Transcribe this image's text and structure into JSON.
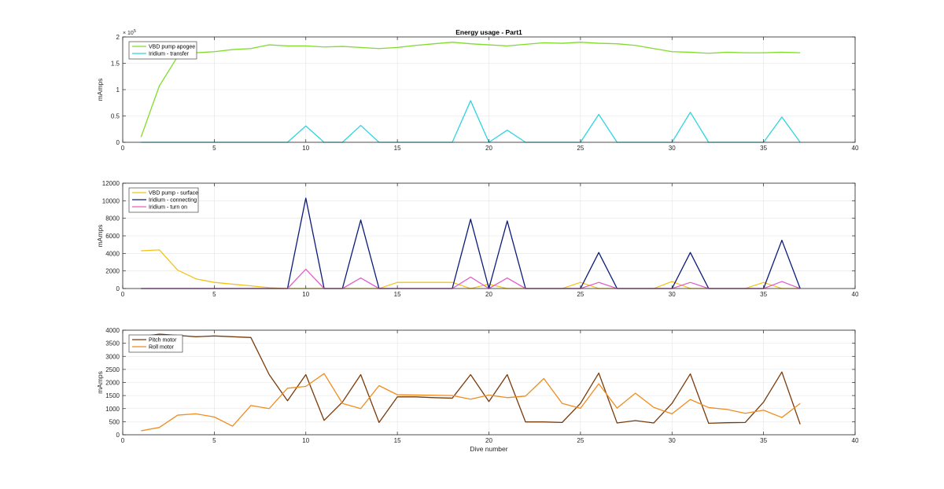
{
  "chart_data": [
    {
      "type": "line",
      "title": "Energy usage - Part1",
      "xlabel": "",
      "ylabel": "mAmps",
      "xlim": [
        0,
        40
      ],
      "ylim": [
        0,
        200000
      ],
      "xticks": [
        0,
        5,
        10,
        15,
        20,
        25,
        30,
        35,
        40
      ],
      "yticks": [
        0,
        50000,
        100000,
        150000,
        200000
      ],
      "ytick_labels": [
        "0",
        "0.5",
        "1",
        "1.5",
        "2"
      ],
      "y_exponent_label": "× 10",
      "y_exponent_power": "5",
      "grid": true,
      "legend_position": "top-left",
      "series": [
        {
          "name": "VBD pump apogee",
          "color": "#7fdc2a",
          "x": [
            1,
            2,
            3,
            4,
            5,
            6,
            7,
            8,
            9,
            10,
            11,
            12,
            13,
            14,
            15,
            16,
            17,
            18,
            19,
            20,
            21,
            22,
            23,
            24,
            25,
            26,
            27,
            28,
            29,
            30,
            31,
            32,
            33,
            34,
            35,
            36,
            37
          ],
          "y": [
            10000,
            107000,
            163000,
            170000,
            172000,
            176000,
            178000,
            185000,
            183000,
            183000,
            181000,
            182000,
            180000,
            178000,
            180000,
            184000,
            187000,
            190000,
            187000,
            185000,
            183000,
            186000,
            189000,
            188000,
            190000,
            188000,
            187000,
            184000,
            178000,
            172000,
            171000,
            169000,
            171000,
            170000,
            170000,
            171000,
            170000
          ]
        },
        {
          "name": "Iridium - transfer",
          "color": "#2fd4e0",
          "x": [
            1,
            2,
            3,
            4,
            5,
            6,
            7,
            8,
            9,
            10,
            11,
            12,
            13,
            14,
            15,
            16,
            17,
            18,
            19,
            20,
            21,
            22,
            23,
            24,
            25,
            26,
            27,
            28,
            29,
            30,
            31,
            32,
            33,
            34,
            35,
            36,
            37
          ],
          "y": [
            0,
            0,
            0,
            0,
            0,
            0,
            0,
            0,
            0,
            31000,
            0,
            0,
            32000,
            0,
            0,
            0,
            0,
            0,
            79000,
            0,
            23000,
            0,
            0,
            0,
            0,
            53000,
            0,
            0,
            0,
            0,
            57000,
            0,
            0,
            0,
            0,
            48000,
            0
          ]
        }
      ]
    },
    {
      "type": "line",
      "title": "",
      "xlabel": "",
      "ylabel": "mAmps",
      "xlim": [
        0,
        40
      ],
      "ylim": [
        0,
        12000
      ],
      "xticks": [
        0,
        5,
        10,
        15,
        20,
        25,
        30,
        35,
        40
      ],
      "yticks": [
        0,
        2000,
        4000,
        6000,
        8000,
        10000,
        12000
      ],
      "ytick_labels": [
        "0",
        "2000",
        "4000",
        "6000",
        "8000",
        "10000",
        "12000"
      ],
      "grid": true,
      "legend_position": "top-left",
      "series": [
        {
          "name": "VBD pump - surface",
          "color": "#f0c419",
          "x": [
            1,
            2,
            3,
            4,
            5,
            6,
            7,
            8,
            9,
            10,
            11,
            12,
            13,
            14,
            15,
            16,
            17,
            18,
            19,
            20,
            21,
            22,
            23,
            24,
            25,
            26,
            27,
            28,
            29,
            30,
            31,
            32,
            33,
            34,
            35,
            36,
            37
          ],
          "y": [
            4300,
            4400,
            2100,
            1100,
            700,
            500,
            300,
            100,
            0,
            0,
            0,
            0,
            0,
            0,
            700,
            700,
            700,
            700,
            0,
            500,
            0,
            0,
            0,
            0,
            700,
            0,
            0,
            0,
            0,
            800,
            0,
            0,
            0,
            0,
            700,
            0,
            0
          ]
        },
        {
          "name": "Iridium - connecting",
          "color": "#0a1a7a",
          "x": [
            1,
            2,
            3,
            4,
            5,
            6,
            7,
            8,
            9,
            10,
            11,
            12,
            13,
            14,
            15,
            16,
            17,
            18,
            19,
            20,
            21,
            22,
            23,
            24,
            25,
            26,
            27,
            28,
            29,
            30,
            31,
            32,
            33,
            34,
            35,
            36,
            37
          ],
          "y": [
            0,
            0,
            0,
            0,
            0,
            0,
            0,
            0,
            0,
            10300,
            0,
            0,
            7800,
            0,
            0,
            0,
            0,
            0,
            7900,
            0,
            7700,
            0,
            0,
            0,
            0,
            4100,
            0,
            0,
            0,
            0,
            4100,
            0,
            0,
            0,
            0,
            5500,
            0
          ]
        },
        {
          "name": "Iridium - turn on",
          "color": "#e060c8",
          "x": [
            1,
            2,
            3,
            4,
            5,
            6,
            7,
            8,
            9,
            10,
            11,
            12,
            13,
            14,
            15,
            16,
            17,
            18,
            19,
            20,
            21,
            22,
            23,
            24,
            25,
            26,
            27,
            28,
            29,
            30,
            31,
            32,
            33,
            34,
            35,
            36,
            37
          ],
          "y": [
            0,
            0,
            0,
            0,
            0,
            0,
            0,
            0,
            0,
            2200,
            0,
            0,
            1200,
            0,
            0,
            0,
            0,
            0,
            1300,
            0,
            1200,
            0,
            0,
            0,
            0,
            700,
            0,
            0,
            0,
            0,
            700,
            0,
            0,
            0,
            0,
            800,
            0
          ]
        }
      ]
    },
    {
      "type": "line",
      "title": "",
      "xlabel": "Dive number",
      "ylabel": "mAmps",
      "xlim": [
        0,
        40
      ],
      "ylim": [
        0,
        4000
      ],
      "xticks": [
        0,
        5,
        10,
        15,
        20,
        25,
        30,
        35,
        40
      ],
      "yticks": [
        0,
        500,
        1000,
        1500,
        2000,
        2500,
        3000,
        3500,
        4000
      ],
      "ytick_labels": [
        "0",
        "500",
        "1000",
        "1500",
        "2000",
        "2500",
        "3000",
        "3500",
        "4000"
      ],
      "grid": true,
      "legend_position": "top-left",
      "series": [
        {
          "name": "Pitch motor",
          "color": "#7a3a0a",
          "x": [
            1,
            2,
            3,
            4,
            5,
            6,
            7,
            8,
            9,
            10,
            11,
            12,
            13,
            14,
            15,
            16,
            17,
            18,
            19,
            20,
            21,
            22,
            23,
            24,
            25,
            26,
            27,
            28,
            29,
            30,
            31,
            32,
            33,
            34,
            35,
            36,
            37
          ],
          "y": [
            3750,
            3850,
            3800,
            3750,
            3780,
            3750,
            3720,
            2300,
            1300,
            2300,
            550,
            1250,
            2300,
            470,
            1450,
            1450,
            1420,
            1400,
            2300,
            1270,
            2300,
            490,
            490,
            470,
            1200,
            2360,
            450,
            540,
            450,
            1200,
            2330,
            440,
            460,
            470,
            1250,
            2400,
            400
          ]
        },
        {
          "name": "Roll motor",
          "color": "#f08c1e",
          "x": [
            1,
            2,
            3,
            4,
            5,
            6,
            7,
            8,
            9,
            10,
            11,
            12,
            13,
            14,
            15,
            16,
            17,
            18,
            19,
            20,
            21,
            22,
            23,
            24,
            25,
            26,
            27,
            28,
            29,
            30,
            31,
            32,
            33,
            34,
            35,
            36,
            37
          ],
          "y": [
            150,
            280,
            750,
            800,
            680,
            330,
            1120,
            1000,
            1780,
            1850,
            2340,
            1200,
            1000,
            1880,
            1530,
            1520,
            1510,
            1500,
            1360,
            1520,
            1420,
            1480,
            2150,
            1200,
            1010,
            1950,
            1020,
            1590,
            1050,
            800,
            1350,
            1040,
            970,
            820,
            940,
            660,
            1200
          ]
        }
      ]
    }
  ]
}
